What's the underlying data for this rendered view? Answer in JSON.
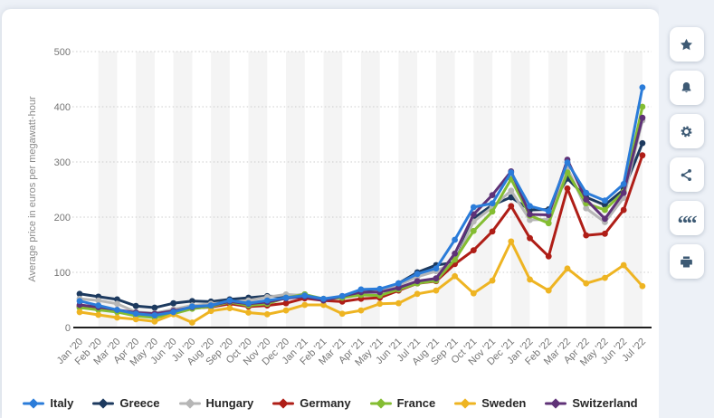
{
  "theme": {
    "background": "#edf1f7",
    "card_background": "#ffffff",
    "icon_color": "#3d5a74",
    "band_color": "#f4f4f4",
    "gridline_color": "#cccccc",
    "axis_line_color": "#1f1f1f",
    "tick_label_color": "#757575"
  },
  "sidebar": {
    "buttons": [
      {
        "id": "favorite-button",
        "icon": "star-icon"
      },
      {
        "id": "alert-button",
        "icon": "bell-icon"
      },
      {
        "id": "settings-button",
        "icon": "gear-icon"
      },
      {
        "id": "share-button",
        "icon": "share-icon"
      },
      {
        "id": "cite-button",
        "icon": "quote-icon"
      },
      {
        "id": "print-button",
        "icon": "print-icon"
      }
    ]
  },
  "chart_data": {
    "type": "line",
    "title": "",
    "xlabel": "",
    "ylabel": "Average price in euros per megawatt-hour",
    "ylim": [
      0,
      500
    ],
    "yticks": [
      0,
      100,
      200,
      300,
      400,
      500
    ],
    "grid": "horizontal-dotted",
    "plot_bands": "alternating-vertical",
    "legend_position": "bottom",
    "marker": "circle",
    "categories": [
      "Jan '20",
      "Feb '20",
      "Mar '20",
      "Apr '20",
      "May '20",
      "Jun '20",
      "Jul '20",
      "Aug '20",
      "Sep '20",
      "Oct '20",
      "Nov '20",
      "Dec '20",
      "Jan '21",
      "Feb '21",
      "Mar '21",
      "Apr '21",
      "May '21",
      "Jun '21",
      "Jul '21",
      "Aug '21",
      "Sep '21",
      "Oct '21",
      "Nov '21",
      "Dec '21",
      "Jan '22",
      "Feb '22",
      "Mar '22",
      "Apr '22",
      "May '22",
      "Jun '22",
      "Jul '22"
    ],
    "series": [
      {
        "name": "Italy",
        "color": "#2b7cd9",
        "values": [
          48,
          40,
          32,
          25,
          22,
          28,
          38,
          40,
          49,
          44,
          49,
          54,
          58,
          52,
          57,
          69,
          70,
          80,
          97,
          107,
          159,
          218,
          225,
          281,
          220,
          211,
          299,
          244,
          230,
          260,
          435
        ]
      },
      {
        "name": "Greece",
        "color": "#1d3a5f",
        "values": [
          61,
          56,
          51,
          39,
          36,
          44,
          48,
          47,
          51,
          54,
          57,
          56,
          60,
          50,
          55,
          64,
          66,
          80,
          100,
          113,
          118,
          198,
          222,
          236,
          213,
          214,
          270,
          236,
          222,
          250,
          334
        ]
      },
      {
        "name": "Hungary",
        "color": "#b6b6b6",
        "values": [
          52,
          49,
          43,
          28,
          26,
          33,
          40,
          43,
          46,
          49,
          55,
          60,
          58,
          51,
          54,
          63,
          65,
          77,
          92,
          102,
          118,
          192,
          218,
          248,
          195,
          196,
          289,
          216,
          191,
          235,
          375
        ]
      },
      {
        "name": "Germany",
        "color": "#af1e17",
        "values": [
          38,
          34,
          29,
          23,
          22,
          29,
          35,
          37,
          43,
          38,
          40,
          44,
          53,
          49,
          47,
          52,
          54,
          67,
          80,
          84,
          115,
          140,
          174,
          220,
          162,
          129,
          252,
          167,
          170,
          213,
          312
        ]
      },
      {
        "name": "France",
        "color": "#84bd32",
        "values": [
          36,
          32,
          28,
          21,
          18,
          25,
          34,
          38,
          46,
          40,
          43,
          54,
          60,
          52,
          54,
          59,
          58,
          69,
          80,
          85,
          123,
          175,
          210,
          269,
          203,
          189,
          281,
          225,
          213,
          246,
          400
        ]
      },
      {
        "name": "Sweden",
        "color": "#eeb422",
        "values": [
          28,
          23,
          18,
          15,
          11,
          24,
          9,
          30,
          35,
          27,
          24,
          31,
          41,
          41,
          25,
          31,
          43,
          44,
          61,
          67,
          93,
          62,
          85,
          156,
          87,
          67,
          107,
          80,
          90,
          113,
          75
        ]
      },
      {
        "name": "Switzerland",
        "color": "#5f3277",
        "values": [
          41,
          37,
          32,
          27,
          25,
          30,
          37,
          40,
          47,
          43,
          46,
          53,
          56,
          49,
          57,
          64,
          64,
          72,
          84,
          89,
          134,
          205,
          240,
          283,
          205,
          204,
          304,
          232,
          197,
          244,
          380
        ]
      }
    ]
  }
}
